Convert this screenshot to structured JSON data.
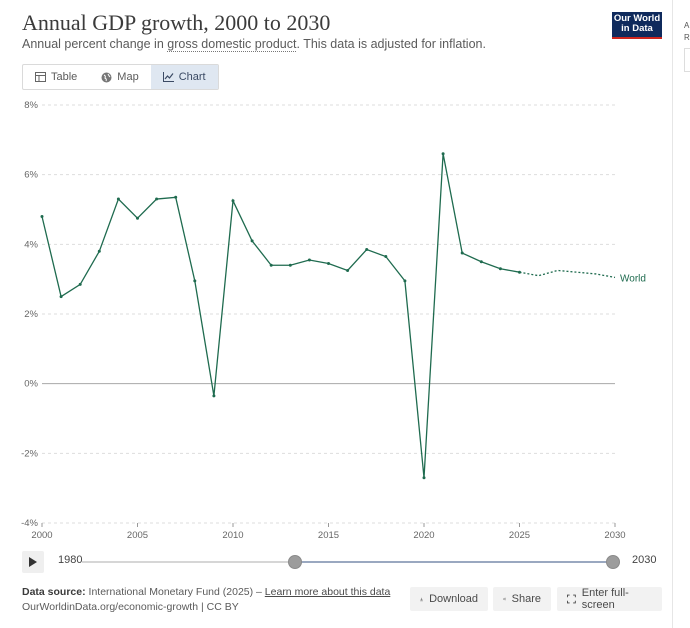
{
  "header": {
    "title": "Annual GDP growth, 2000 to 2030",
    "subtitle_before": "Annual percent change in ",
    "subtitle_link": "gross domestic product",
    "subtitle_after": ". This data is adjusted for inflation.",
    "logo_line1": "Our World",
    "logo_line2": "in Data",
    "side_text_line1": "A",
    "side_text_line2": "R"
  },
  "tabs": [
    {
      "label": "Table",
      "icon": "table-icon"
    },
    {
      "label": "Map",
      "icon": "globe-icon"
    },
    {
      "label": "Chart",
      "icon": "line-chart-icon",
      "active": true
    }
  ],
  "chart_data": {
    "type": "line",
    "title": "Annual GDP growth, 2000 to 2030",
    "xlabel": "",
    "ylabel": "",
    "xlim": [
      2000,
      2030
    ],
    "ylim": [
      -4,
      8
    ],
    "x_ticks": [
      "2000",
      "2005",
      "2010",
      "2015",
      "2020",
      "2025",
      "2030"
    ],
    "y_ticks": [
      "8%",
      "6%",
      "4%",
      "2%",
      "0%",
      "-2%",
      "-4%"
    ],
    "grid": "horizontal",
    "series": [
      {
        "name": "World",
        "color": "#1f6b4f",
        "x": [
          2000,
          2001,
          2002,
          2003,
          2004,
          2005,
          2006,
          2007,
          2008,
          2009,
          2010,
          2011,
          2012,
          2013,
          2014,
          2015,
          2016,
          2017,
          2018,
          2019,
          2020,
          2021,
          2022,
          2023,
          2024,
          2025
        ],
        "y": [
          4.8,
          2.5,
          2.85,
          3.8,
          5.3,
          4.75,
          5.3,
          5.35,
          2.95,
          -0.35,
          5.25,
          4.1,
          3.4,
          3.4,
          3.55,
          3.45,
          3.25,
          3.85,
          3.65,
          2.95,
          -2.7,
          6.6,
          3.75,
          3.5,
          3.3,
          3.2
        ],
        "projection_x": [
          2025,
          2026,
          2027,
          2028,
          2029,
          2030
        ],
        "projection_y": [
          3.2,
          3.1,
          3.25,
          3.2,
          3.15,
          3.05
        ]
      }
    ]
  },
  "timeline": {
    "start_label": "1980",
    "end_label": "2030",
    "range_start": 2000,
    "range_end": 2030,
    "min": 1980,
    "max": 2030
  },
  "footer": {
    "source_label": "Data source:",
    "source_text": " International Monetary Fund (2025) – ",
    "learn_more": "Learn more about this data",
    "url_text": "OurWorldinData.org/economic-growth | CC BY",
    "download_label": "Download",
    "share_label": "Share",
    "fullscreen_label": "Enter full-screen"
  },
  "colors": {
    "line": "#1f6b4f",
    "grid": "#dddddd",
    "zero_line": "#a8a8a8",
    "logo_bg": "#0f2a5c",
    "logo_accent": "#ce261e"
  }
}
